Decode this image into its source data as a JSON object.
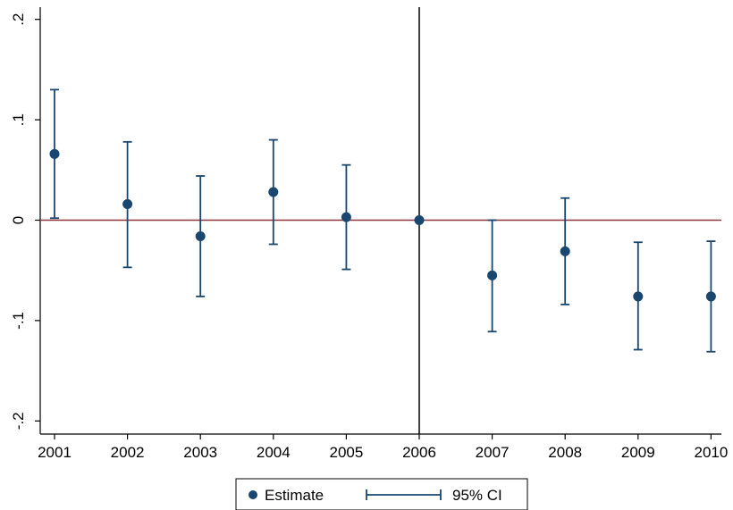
{
  "chart_data": {
    "type": "scatter",
    "title": "",
    "xlabel": "",
    "ylabel": "",
    "categories": [
      "2001",
      "2002",
      "2003",
      "2004",
      "2005",
      "2006",
      "2007",
      "2008",
      "2009",
      "2010"
    ],
    "yticks": [
      ".2",
      ".1",
      "0",
      "-.1",
      "-.2"
    ],
    "ylim": [
      -0.21,
      0.21
    ],
    "reference_line_y": 0,
    "reference_line_x": "2006",
    "series": [
      {
        "name": "Estimate",
        "values": [
          0.066,
          0.016,
          -0.016,
          0.028,
          0.003,
          0.0,
          -0.055,
          -0.031,
          -0.076,
          -0.076
        ]
      },
      {
        "name": "95% CI",
        "lower": [
          0.002,
          -0.047,
          -0.076,
          -0.024,
          -0.049,
          0.0,
          -0.111,
          -0.084,
          -0.129,
          -0.131
        ],
        "upper": [
          0.13,
          0.078,
          0.044,
          0.08,
          0.055,
          0.0,
          0.0,
          0.022,
          -0.022,
          -0.021
        ]
      }
    ],
    "legend_position": "bottom"
  },
  "legend": {
    "estimate_label": "Estimate",
    "ci_label": "95% CI"
  },
  "colors": {
    "marker": "#1a476f",
    "ci": "#1a476f",
    "zero_line": "#90353b",
    "vline": "#000000",
    "axis": "#000000"
  }
}
